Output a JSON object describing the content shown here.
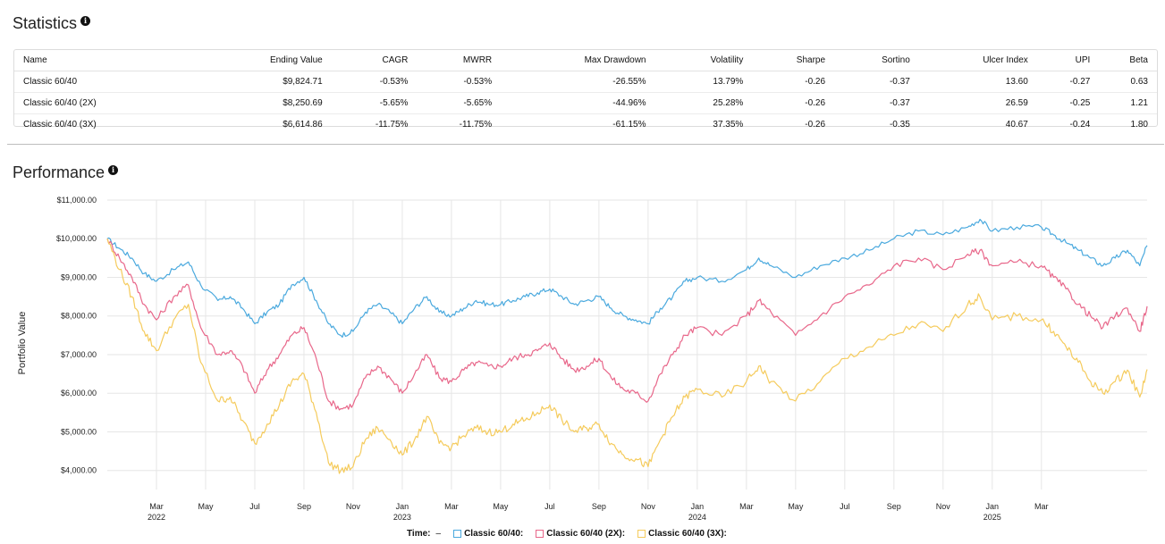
{
  "statistics": {
    "title": "Statistics",
    "columns": [
      "Name",
      "Ending Value",
      "CAGR",
      "MWRR",
      "Max Drawdown",
      "Volatility",
      "Sharpe",
      "Sortino",
      "Ulcer Index",
      "UPI",
      "Beta"
    ],
    "rows": [
      [
        "Classic 60/40",
        "$9,824.71",
        "-0.53%",
        "-0.53%",
        "-26.55%",
        "13.79%",
        "-0.26",
        "-0.37",
        "13.60",
        "-0.27",
        "0.63"
      ],
      [
        "Classic 60/40 (2X)",
        "$8,250.69",
        "-5.65%",
        "-5.65%",
        "-44.96%",
        "25.28%",
        "-0.26",
        "-0.37",
        "26.59",
        "-0.25",
        "1.21"
      ],
      [
        "Classic 60/40 (3X)",
        "$6,614.86",
        "-11.75%",
        "-11.75%",
        "-61.15%",
        "37.35%",
        "-0.26",
        "-0.35",
        "40.67",
        "-0.24",
        "1.80"
      ]
    ]
  },
  "performance": {
    "title": "Performance",
    "legend": {
      "time_label": "Time:",
      "time_value": "–",
      "items": [
        "Classic 60/40:",
        "Classic 60/40 (2X):",
        "Classic 60/40 (3X):"
      ]
    }
  },
  "chart_data": {
    "type": "line",
    "ylabel": "Portfolio Value",
    "ylim": [
      3600,
      11000
    ],
    "y_ticks": [
      11000,
      10000,
      9000,
      8000,
      7000,
      6000,
      5000,
      4000
    ],
    "y_tick_labels": [
      "$11,000.00",
      "$10,000.00",
      "$9,000.00",
      "$8,000.00",
      "$7,000.00",
      "$6,000.00",
      "$5,000.00",
      "$4,000.00"
    ],
    "x_range_months": [
      0,
      42.3
    ],
    "x_ticks": [
      {
        "m": 2,
        "label": "Mar",
        "year": "2022"
      },
      {
        "m": 4,
        "label": "May",
        "year": ""
      },
      {
        "m": 6,
        "label": "Jul",
        "year": ""
      },
      {
        "m": 8,
        "label": "Sep",
        "year": ""
      },
      {
        "m": 10,
        "label": "Nov",
        "year": ""
      },
      {
        "m": 12,
        "label": "Jan",
        "year": "2023"
      },
      {
        "m": 14,
        "label": "Mar",
        "year": ""
      },
      {
        "m": 16,
        "label": "May",
        "year": ""
      },
      {
        "m": 18,
        "label": "Jul",
        "year": ""
      },
      {
        "m": 20,
        "label": "Sep",
        "year": ""
      },
      {
        "m": 22,
        "label": "Nov",
        "year": ""
      },
      {
        "m": 24,
        "label": "Jan",
        "year": "2024"
      },
      {
        "m": 26,
        "label": "Mar",
        "year": ""
      },
      {
        "m": 28,
        "label": "May",
        "year": ""
      },
      {
        "m": 30,
        "label": "Jul",
        "year": ""
      },
      {
        "m": 32,
        "label": "Sep",
        "year": ""
      },
      {
        "m": 34,
        "label": "Nov",
        "year": ""
      },
      {
        "m": 36,
        "label": "Jan",
        "year": "2025"
      },
      {
        "m": 38,
        "label": "Mar",
        "year": ""
      }
    ],
    "series": [
      {
        "name": "Classic 60/40",
        "color": "#4aa9de",
        "points": [
          [
            0,
            10000
          ],
          [
            0.5,
            9750
          ],
          [
            1,
            9500
          ],
          [
            1.5,
            9100
          ],
          [
            2,
            8900
          ],
          [
            2.7,
            9200
          ],
          [
            3.3,
            9400
          ],
          [
            3.8,
            8800
          ],
          [
            4.5,
            8400
          ],
          [
            5,
            8500
          ],
          [
            5.5,
            8200
          ],
          [
            6,
            7800
          ],
          [
            6.5,
            8100
          ],
          [
            7,
            8300
          ],
          [
            7.5,
            8800
          ],
          [
            8,
            9000
          ],
          [
            8.5,
            8400
          ],
          [
            9,
            7800
          ],
          [
            9.5,
            7500
          ],
          [
            10,
            7600
          ],
          [
            10.5,
            8100
          ],
          [
            11,
            8300
          ],
          [
            11.5,
            8100
          ],
          [
            12,
            7800
          ],
          [
            12.5,
            8200
          ],
          [
            13,
            8500
          ],
          [
            13.5,
            8100
          ],
          [
            14,
            8000
          ],
          [
            14.5,
            8200
          ],
          [
            15,
            8400
          ],
          [
            15.5,
            8300
          ],
          [
            16,
            8300
          ],
          [
            16.5,
            8400
          ],
          [
            17,
            8500
          ],
          [
            17.5,
            8600
          ],
          [
            18,
            8700
          ],
          [
            18.5,
            8500
          ],
          [
            19,
            8300
          ],
          [
            19.5,
            8400
          ],
          [
            20,
            8500
          ],
          [
            20.5,
            8200
          ],
          [
            21,
            8000
          ],
          [
            21.5,
            7900
          ],
          [
            22,
            7800
          ],
          [
            22.5,
            8200
          ],
          [
            23,
            8500
          ],
          [
            23.5,
            8900
          ],
          [
            24,
            9000
          ],
          [
            25,
            8900
          ],
          [
            26,
            9200
          ],
          [
            26.5,
            9500
          ],
          [
            27,
            9300
          ],
          [
            28,
            9000
          ],
          [
            29,
            9300
          ],
          [
            30,
            9500
          ],
          [
            31,
            9700
          ],
          [
            32,
            10000
          ],
          [
            33,
            10200
          ],
          [
            34,
            10100
          ],
          [
            35,
            10300
          ],
          [
            35.5,
            10500
          ],
          [
            36,
            10200
          ],
          [
            37,
            10300
          ],
          [
            38,
            10300
          ],
          [
            38.5,
            10100
          ],
          [
            39,
            9900
          ],
          [
            39.5,
            9700
          ],
          [
            40,
            9500
          ],
          [
            40.5,
            9300
          ],
          [
            41,
            9500
          ],
          [
            41.5,
            9700
          ],
          [
            42,
            9300
          ],
          [
            42.3,
            9824.71
          ]
        ]
      },
      {
        "name": "Classic 60/40 (2X)",
        "color": "#e8678a",
        "points": [
          [
            0,
            10000
          ],
          [
            0.5,
            9500
          ],
          [
            1,
            9000
          ],
          [
            1.5,
            8300
          ],
          [
            2,
            7900
          ],
          [
            2.7,
            8500
          ],
          [
            3.3,
            8800
          ],
          [
            3.8,
            7700
          ],
          [
            4.5,
            7000
          ],
          [
            5,
            7100
          ],
          [
            5.5,
            6700
          ],
          [
            6,
            6000
          ],
          [
            6.5,
            6600
          ],
          [
            7,
            7000
          ],
          [
            7.5,
            7500
          ],
          [
            8,
            7700
          ],
          [
            8.5,
            6900
          ],
          [
            9,
            5800
          ],
          [
            9.5,
            5600
          ],
          [
            10,
            5700
          ],
          [
            10.5,
            6400
          ],
          [
            11,
            6700
          ],
          [
            11.5,
            6400
          ],
          [
            12,
            6000
          ],
          [
            12.5,
            6500
          ],
          [
            13,
            7000
          ],
          [
            13.5,
            6400
          ],
          [
            14,
            6300
          ],
          [
            14.5,
            6600
          ],
          [
            15,
            6800
          ],
          [
            15.5,
            6700
          ],
          [
            16,
            6700
          ],
          [
            16.5,
            6900
          ],
          [
            17,
            7000
          ],
          [
            17.5,
            7100
          ],
          [
            18,
            7300
          ],
          [
            18.5,
            6900
          ],
          [
            19,
            6600
          ],
          [
            19.5,
            6700
          ],
          [
            20,
            6900
          ],
          [
            20.5,
            6400
          ],
          [
            21,
            6100
          ],
          [
            21.5,
            6000
          ],
          [
            22,
            5800
          ],
          [
            22.5,
            6500
          ],
          [
            23,
            7000
          ],
          [
            23.5,
            7500
          ],
          [
            24,
            7700
          ],
          [
            25,
            7500
          ],
          [
            26,
            8000
          ],
          [
            26.5,
            8400
          ],
          [
            27,
            8100
          ],
          [
            28,
            7500
          ],
          [
            29,
            8000
          ],
          [
            30,
            8500
          ],
          [
            31,
            8800
          ],
          [
            32,
            9300
          ],
          [
            33,
            9500
          ],
          [
            34,
            9200
          ],
          [
            35,
            9600
          ],
          [
            35.5,
            9700
          ],
          [
            36,
            9300
          ],
          [
            37,
            9400
          ],
          [
            38,
            9300
          ],
          [
            38.5,
            9000
          ],
          [
            39,
            8700
          ],
          [
            39.5,
            8300
          ],
          [
            40,
            8000
          ],
          [
            40.5,
            7700
          ],
          [
            41,
            8000
          ],
          [
            41.5,
            8200
          ],
          [
            42,
            7600
          ],
          [
            42.3,
            8250.69
          ]
        ]
      },
      {
        "name": "Classic 60/40 (3X)",
        "color": "#f5cb5c",
        "points": [
          [
            0,
            10000
          ],
          [
            0.5,
            9200
          ],
          [
            1,
            8500
          ],
          [
            1.5,
            7600
          ],
          [
            2,
            7100
          ],
          [
            2.7,
            7900
          ],
          [
            3.3,
            8300
          ],
          [
            3.8,
            6800
          ],
          [
            4.5,
            5800
          ],
          [
            5,
            5900
          ],
          [
            5.5,
            5300
          ],
          [
            6,
            4700
          ],
          [
            6.5,
            5200
          ],
          [
            7,
            5700
          ],
          [
            7.5,
            6300
          ],
          [
            8,
            6500
          ],
          [
            8.5,
            5500
          ],
          [
            9,
            4200
          ],
          [
            9.5,
            4000
          ],
          [
            10,
            4100
          ],
          [
            10.5,
            4800
          ],
          [
            11,
            5100
          ],
          [
            11.5,
            4800
          ],
          [
            12,
            4400
          ],
          [
            12.5,
            4800
          ],
          [
            13,
            5400
          ],
          [
            13.5,
            4700
          ],
          [
            14,
            4600
          ],
          [
            14.5,
            4900
          ],
          [
            15,
            5100
          ],
          [
            15.5,
            5000
          ],
          [
            16,
            5000
          ],
          [
            16.5,
            5200
          ],
          [
            17,
            5300
          ],
          [
            17.5,
            5500
          ],
          [
            18,
            5700
          ],
          [
            18.5,
            5300
          ],
          [
            19,
            5000
          ],
          [
            19.5,
            5100
          ],
          [
            20,
            5200
          ],
          [
            20.5,
            4700
          ],
          [
            21,
            4400
          ],
          [
            21.5,
            4300
          ],
          [
            22,
            4100
          ],
          [
            22.5,
            4800
          ],
          [
            23,
            5400
          ],
          [
            23.5,
            5900
          ],
          [
            24,
            6100
          ],
          [
            25,
            5900
          ],
          [
            26,
            6300
          ],
          [
            26.5,
            6700
          ],
          [
            27,
            6300
          ],
          [
            28,
            5800
          ],
          [
            29,
            6300
          ],
          [
            30,
            6900
          ],
          [
            31,
            7200
          ],
          [
            32,
            7500
          ],
          [
            33,
            7800
          ],
          [
            34,
            7600
          ],
          [
            35,
            8300
          ],
          [
            35.5,
            8500
          ],
          [
            36,
            7900
          ],
          [
            37,
            8000
          ],
          [
            38,
            7900
          ],
          [
            38.5,
            7600
          ],
          [
            39,
            7200
          ],
          [
            39.5,
            6800
          ],
          [
            40,
            6300
          ],
          [
            40.5,
            6000
          ],
          [
            41,
            6300
          ],
          [
            41.5,
            6600
          ],
          [
            42,
            5900
          ],
          [
            42.3,
            6614.86
          ]
        ]
      }
    ]
  }
}
